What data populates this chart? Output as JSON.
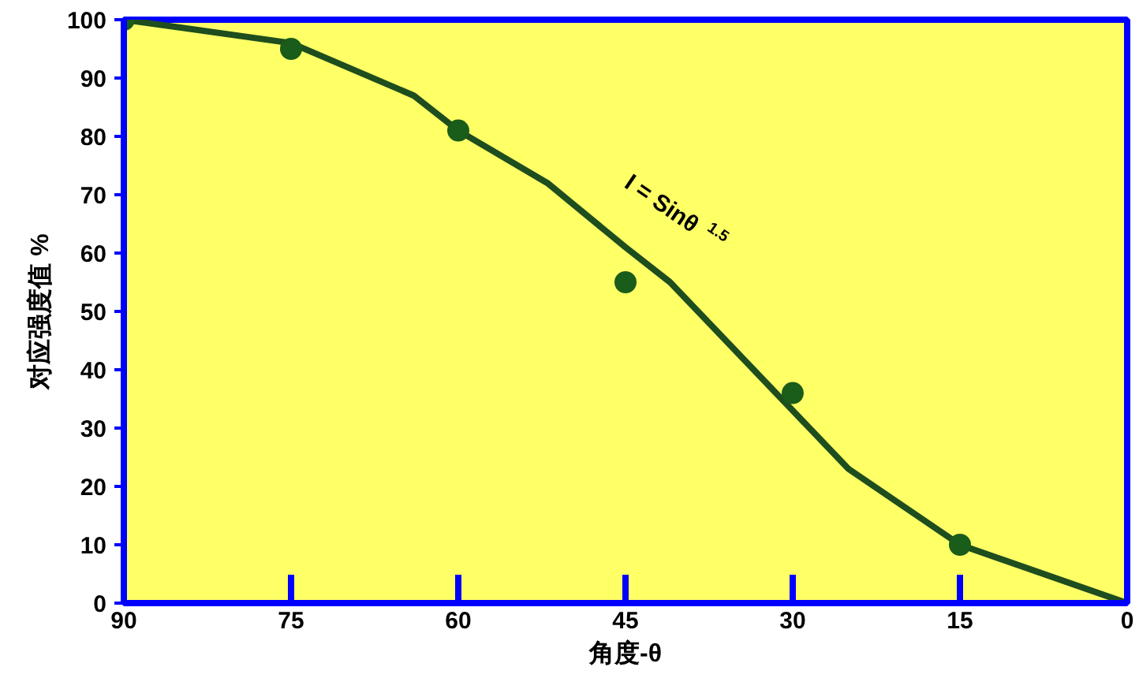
{
  "chart_data": {
    "type": "line",
    "xlabel": "角度-θ",
    "ylabel": "对应强度值 %",
    "xlim": [
      90,
      0
    ],
    "xticks": [
      90,
      75,
      60,
      45,
      30,
      15,
      0
    ],
    "ylim": [
      0,
      100
    ],
    "yticks": [
      0,
      10,
      20,
      30,
      40,
      50,
      60,
      70,
      80,
      90,
      100
    ],
    "grid": false,
    "line_style": "solid",
    "series": [
      {
        "color": "#1e4d1e",
        "marker": "none",
        "x": [
          90,
          75,
          64,
          60,
          52,
          45,
          41,
          30,
          25,
          15,
          0
        ],
        "values": [
          100,
          96,
          87,
          81,
          72,
          61,
          55,
          33,
          23,
          10,
          0
        ]
      },
      {
        "type": "scatter",
        "color": "#1a5c1a",
        "marker": "circle",
        "x": [
          90,
          75,
          60,
          45,
          30,
          15
        ],
        "values": [
          100,
          95,
          81,
          55,
          36,
          10
        ]
      }
    ],
    "annotations": [
      "I = Sinθ$^{1.5}$"
    ]
  }
}
